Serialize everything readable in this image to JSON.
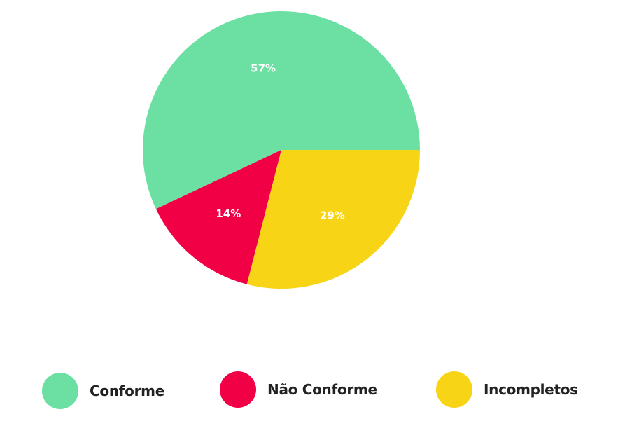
{
  "chart_data": {
    "type": "pie",
    "categories": [
      "Conforme",
      "Não Conforme",
      "Incompletos"
    ],
    "values": [
      57,
      14,
      29
    ],
    "labels": [
      "57%",
      "14%",
      "29%"
    ],
    "colors": [
      "#6be0a2",
      "#f20046",
      "#f8d417"
    ],
    "start_angle_deg": 0,
    "direction": "counterclockwise",
    "title": "",
    "legend_position": "bottom"
  },
  "legend": {
    "items": [
      {
        "label": "Conforme",
        "color": "#6be0a2"
      },
      {
        "label": "Não Conforme",
        "color": "#f20046"
      },
      {
        "label": "Incompletos",
        "color": "#f8d417"
      }
    ]
  }
}
